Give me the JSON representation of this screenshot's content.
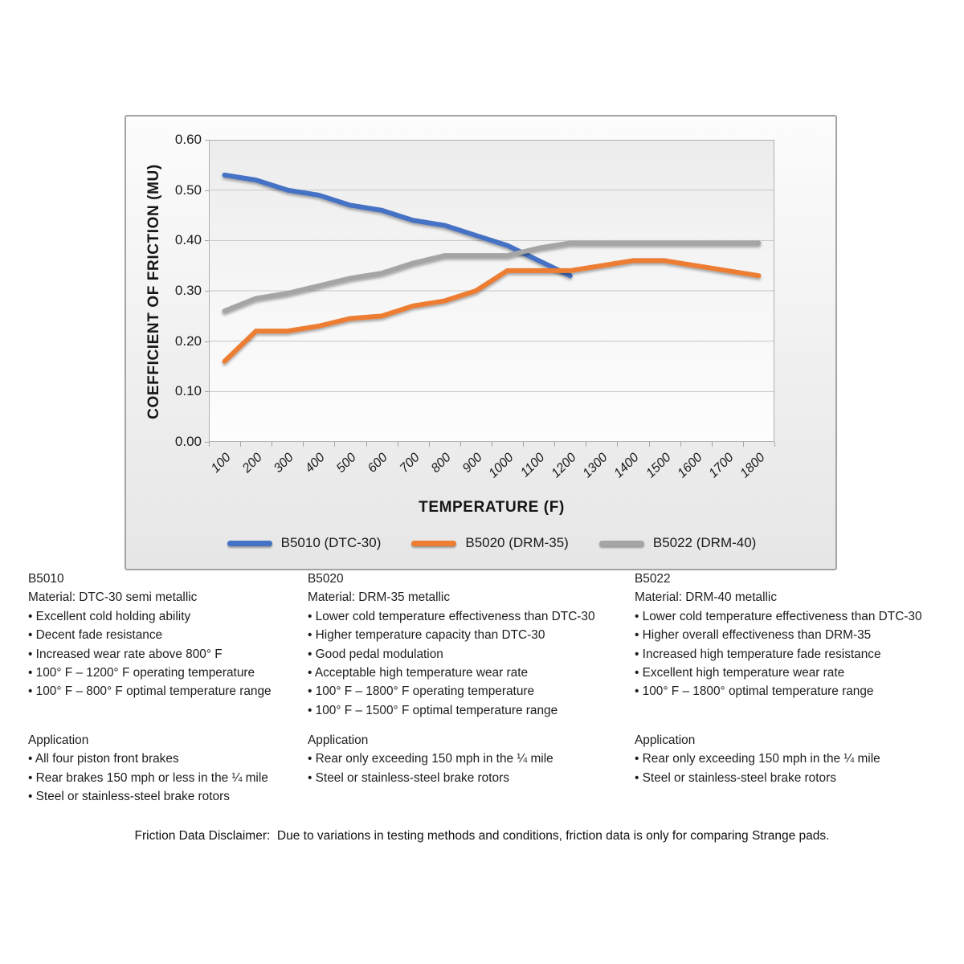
{
  "bullet_char": "•",
  "chart_data": {
    "type": "line",
    "title": "",
    "xlabel": "TEMPERATURE (F)",
    "ylabel": "COEFFICIENT OF FRICTION (MU)",
    "x_categories": [
      "100",
      "200",
      "300",
      "400",
      "500",
      "600",
      "700",
      "800",
      "900",
      "1000",
      "1100",
      "1200",
      "1300",
      "1400",
      "1500",
      "1600",
      "1700",
      "1800"
    ],
    "ylim": [
      0,
      0.6
    ],
    "ytick_labels": [
      "0.00",
      "0.10",
      "0.20",
      "0.30",
      "0.40",
      "0.50",
      "0.60"
    ],
    "grid": true,
    "legend_position": "bottom",
    "series": [
      {
        "name": "B5010 (DTC-30)",
        "color": "#4472C4",
        "values": [
          0.53,
          0.52,
          0.5,
          0.49,
          0.47,
          0.46,
          0.44,
          0.43,
          0.41,
          0.39,
          0.36,
          0.33
        ]
      },
      {
        "name": "B5020 (DRM-35)",
        "color": "#ED7D31",
        "values": [
          0.16,
          0.22,
          0.22,
          0.23,
          0.245,
          0.25,
          0.27,
          0.28,
          0.3,
          0.34,
          0.34,
          0.34,
          0.35,
          0.36,
          0.36,
          0.35,
          0.34,
          0.33
        ]
      },
      {
        "name": "B5022 (DRM-40)",
        "color": "#A5A5A5",
        "values": [
          0.26,
          0.285,
          0.295,
          0.31,
          0.325,
          0.335,
          0.355,
          0.37,
          0.37,
          0.37,
          0.385,
          0.395,
          0.395,
          0.395,
          0.395,
          0.395,
          0.395,
          0.395
        ]
      }
    ]
  },
  "columns": [
    {
      "id": "B5010",
      "material": "Material: DTC-30 semi metallic",
      "features": [
        "Excellent cold holding ability",
        "Decent fade resistance",
        "Increased wear rate above 800° F",
        "100° F – 1200° F operating temperature",
        "100° F – 800° F optimal temperature range"
      ],
      "application_title": "Application",
      "applications": [
        "All four piston front brakes",
        "Rear brakes 150 mph or less in the ¼ mile",
        "Steel or stainless-steel brake rotors"
      ]
    },
    {
      "id": "B5020",
      "material": "Material: DRM-35 metallic",
      "features": [
        "Lower cold temperature effectiveness than DTC-30",
        "Higher temperature capacity than DTC-30",
        "Good pedal modulation",
        "Acceptable high temperature wear rate",
        "100° F – 1800° F operating temperature",
        "100° F – 1500° F optimal temperature range"
      ],
      "application_title": "Application",
      "applications": [
        "Rear only exceeding 150 mph in the ¼ mile",
        "Steel or stainless-steel brake rotors"
      ]
    },
    {
      "id": "B5022",
      "material": "Material: DRM-40 metallic",
      "features": [
        "Lower cold temperature effectiveness than DTC-30",
        "Higher overall effectiveness than DRM-35",
        "Increased high temperature fade resistance",
        "Excellent high temperature wear rate",
        "100° F – 1800° optimal temperature range"
      ],
      "application_title": "Application",
      "applications": [
        "Rear only exceeding 150 mph in the ¼ mile",
        "Steel or stainless-steel brake rotors"
      ]
    }
  ],
  "disclaimer": "Friction Data Disclaimer:  Due to variations in testing methods and conditions, friction data is only for comparing Strange pads."
}
